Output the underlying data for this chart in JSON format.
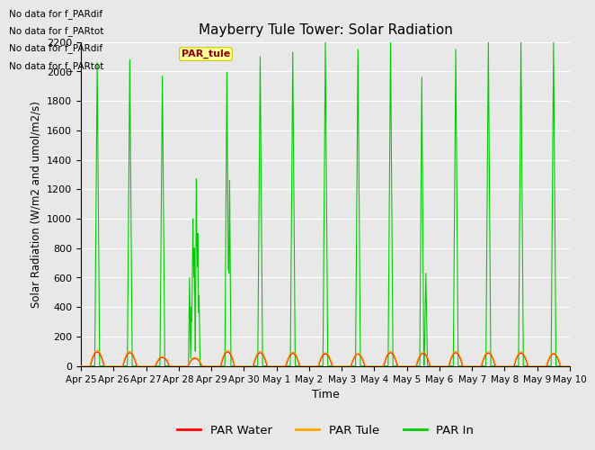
{
  "title": "Mayberry Tule Tower: Solar Radiation",
  "xlabel": "Time",
  "ylabel": "Solar Radiation (W/m2 and umol/m2/s)",
  "ylim": [
    0,
    2200
  ],
  "yticks": [
    0,
    200,
    400,
    600,
    800,
    1000,
    1200,
    1400,
    1600,
    1800,
    2000,
    2200
  ],
  "background_color": "#e8e8e8",
  "grid_color": "#ffffff",
  "par_water_color": "#ff0000",
  "par_tule_color": "#ffa500",
  "par_in_color": "#00cc00",
  "legend_labels": [
    "PAR Water",
    "PAR Tule",
    "PAR In"
  ],
  "legend_colors": [
    "#ff0000",
    "#ffa500",
    "#00cc00"
  ],
  "tick_labels": [
    "Apr 25",
    "Apr 26",
    "Apr 27",
    "Apr 28",
    "Apr 29",
    "Apr 30",
    "May 1",
    "May 2",
    "May 3",
    "May 4",
    "May 5",
    "May 6",
    "May 7",
    "May 8",
    "May 9",
    "May 10"
  ],
  "no_data_lines": [
    "No data for f_PARdif",
    "No data for f_PARtot",
    "No data for f_PARdif",
    "No data for f_PARtot"
  ],
  "annotation_text": "PAR_tule",
  "annotation_bg": "#ffff99"
}
